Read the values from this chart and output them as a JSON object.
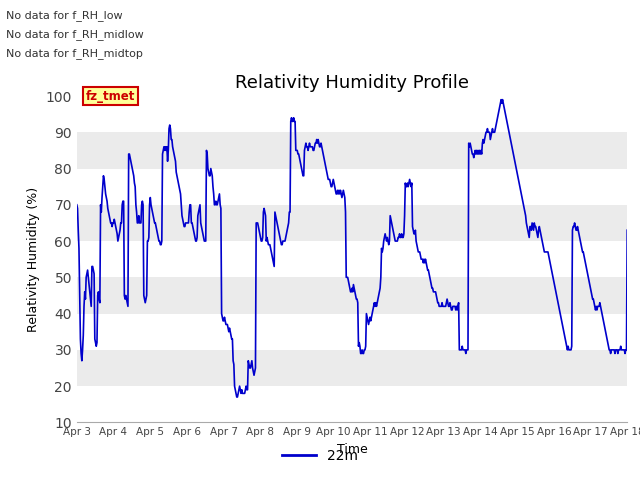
{
  "title": "Relativity Humidity Profile",
  "ylabel": "Relativity Humidity (%)",
  "xlabel": "Time",
  "ylim": [
    10,
    100
  ],
  "line_color": "#0000cc",
  "line_width": 1.2,
  "legend_label": "22m",
  "no_data_texts": [
    "No data for f_RH_low",
    "No data for f_RH_midlow",
    "No data for f_RH_midtop"
  ],
  "annotation_text": "fz_tmet",
  "annotation_color": "#cc0000",
  "annotation_bg": "#ffff99",
  "fig_bg_color": "#ffffff",
  "band_colors": [
    "#ffffff",
    "#ebebeb"
  ],
  "yticks": [
    10,
    20,
    30,
    40,
    50,
    60,
    70,
    80,
    90,
    100
  ],
  "rh_values": [
    70,
    69,
    63,
    58,
    45,
    33,
    29,
    27,
    30,
    34,
    42,
    46,
    44,
    50,
    51,
    52,
    50,
    48,
    46,
    44,
    42,
    53,
    53,
    52,
    51,
    33,
    32,
    31,
    32,
    45,
    46,
    44,
    43,
    70,
    68,
    72,
    75,
    78,
    77,
    75,
    73,
    72,
    71,
    69,
    68,
    67,
    66,
    65,
    65,
    64,
    65,
    65,
    66,
    65,
    64,
    63,
    62,
    60,
    61,
    62,
    63,
    65,
    65,
    70,
    71,
    71,
    45,
    44,
    45,
    44,
    43,
    42,
    84,
    84,
    83,
    82,
    81,
    80,
    79,
    78,
    76,
    75,
    70,
    68,
    65,
    65,
    67,
    65,
    65,
    65,
    70,
    71,
    70,
    45,
    44,
    43,
    44,
    45,
    60,
    60,
    61,
    70,
    72,
    70,
    69,
    68,
    67,
    66,
    65,
    65,
    64,
    63,
    62,
    61,
    60,
    60,
    59,
    59,
    60,
    84,
    85,
    86,
    85,
    86,
    85,
    86,
    82,
    85,
    91,
    92,
    91,
    88,
    88,
    86,
    85,
    84,
    83,
    82,
    79,
    78,
    77,
    76,
    75,
    74,
    73,
    70,
    67,
    66,
    65,
    64,
    64,
    65,
    65,
    65,
    65,
    65,
    68,
    70,
    70,
    65,
    65,
    64,
    63,
    62,
    61,
    60,
    60,
    61,
    67,
    68,
    69,
    70,
    65,
    64,
    63,
    62,
    61,
    60,
    60,
    60,
    85,
    84,
    80,
    79,
    78,
    78,
    80,
    79,
    78,
    75,
    73,
    70,
    70,
    71,
    70,
    70,
    71,
    72,
    73,
    70,
    69,
    40,
    39,
    38,
    38,
    39,
    38,
    37,
    37,
    37,
    36,
    35,
    36,
    35,
    34,
    33,
    33,
    27,
    26,
    20,
    19,
    18,
    17,
    17,
    18,
    19,
    20,
    19,
    18,
    19,
    18,
    18,
    18,
    18,
    19,
    20,
    19,
    19,
    27,
    26,
    25,
    25,
    26,
    27,
    25,
    24,
    23,
    24,
    25,
    65,
    65,
    65,
    64,
    63,
    62,
    61,
    60,
    60,
    61,
    68,
    69,
    68,
    67,
    60,
    61,
    60,
    59,
    59,
    59,
    58,
    57,
    56,
    55,
    54,
    53,
    68,
    67,
    66,
    65,
    64,
    63,
    62,
    61,
    60,
    59,
    59,
    60,
    60,
    60,
    60,
    61,
    62,
    63,
    64,
    65,
    68,
    68,
    93,
    94,
    93,
    93,
    94,
    93,
    93,
    85,
    85,
    85,
    84,
    84,
    83,
    82,
    81,
    80,
    79,
    78,
    78,
    85,
    86,
    87,
    86,
    86,
    85,
    86,
    87,
    86,
    86,
    86,
    86,
    85,
    85,
    86,
    87,
    87,
    88,
    87,
    88,
    87,
    86,
    86,
    87,
    86,
    85,
    84,
    83,
    82,
    81,
    80,
    79,
    78,
    77,
    77,
    77,
    76,
    75,
    75,
    76,
    77,
    76,
    75,
    74,
    73,
    73,
    74,
    73,
    74,
    73,
    74,
    73,
    72,
    73,
    74,
    73,
    72,
    68,
    50,
    50,
    50,
    49,
    48,
    47,
    46,
    46,
    47,
    46,
    48,
    47,
    46,
    45,
    44,
    44,
    43,
    31,
    32,
    31,
    29,
    29,
    30,
    29,
    29,
    30,
    30,
    31,
    40,
    39,
    38,
    37,
    38,
    39,
    38,
    39,
    40,
    41,
    42,
    43,
    42,
    43,
    42,
    43,
    44,
    45,
    46,
    47,
    50,
    58,
    57,
    58,
    60,
    61,
    62,
    61,
    60,
    61,
    60,
    59,
    60,
    67,
    66,
    65,
    64,
    63,
    62,
    61,
    60,
    60,
    60,
    60,
    61,
    61,
    62,
    61,
    61,
    62,
    61,
    61,
    62,
    67,
    76,
    75,
    75,
    76,
    75,
    76,
    77,
    76,
    75,
    76,
    64,
    63,
    62,
    62,
    63,
    60,
    59,
    58,
    57,
    57,
    57,
    56,
    55,
    55,
    55,
    54,
    55,
    54,
    55,
    54,
    53,
    52,
    52,
    51,
    50,
    49,
    48,
    47,
    47,
    46,
    46,
    46,
    46,
    45,
    44,
    43,
    43,
    42,
    42,
    42,
    42,
    43,
    42,
    42,
    42,
    42,
    42,
    43,
    44,
    43,
    42,
    42,
    43,
    42,
    41,
    41,
    42,
    42,
    42,
    42,
    41,
    42,
    41,
    42,
    43,
    30,
    30,
    30,
    30,
    31,
    30,
    30,
    30,
    30,
    29,
    30,
    30,
    30,
    87,
    86,
    87,
    86,
    85,
    84,
    84,
    83,
    84,
    85,
    84,
    85,
    84,
    85,
    84,
    85,
    84,
    85,
    84,
    87,
    88,
    87,
    88,
    89,
    90,
    90,
    91,
    90,
    90,
    90,
    88,
    89,
    90,
    91,
    90,
    90,
    90,
    91,
    92,
    93,
    94,
    95,
    96,
    97,
    98,
    99,
    98,
    99,
    98,
    97,
    96,
    95,
    94,
    93,
    92,
    91,
    90,
    89,
    88,
    87,
    86,
    85,
    84,
    83,
    82,
    81,
    80,
    79,
    78,
    77,
    76,
    75,
    74,
    73,
    72,
    71,
    70,
    69,
    68,
    67,
    65,
    64,
    63,
    62,
    61,
    64,
    64,
    63,
    65,
    64,
    63,
    65,
    64,
    64,
    63,
    62,
    61,
    63,
    64,
    63,
    62,
    61,
    60,
    59,
    58,
    57,
    57,
    57,
    57,
    57,
    57,
    56,
    55,
    54,
    53,
    52,
    51,
    50,
    49,
    48,
    47,
    46,
    45,
    44,
    43,
    42,
    41,
    40,
    39,
    38,
    37,
    36,
    35,
    34,
    33,
    32,
    31,
    30,
    31,
    30,
    30,
    30,
    30,
    31,
    63,
    64,
    64,
    65,
    64,
    63,
    63,
    64,
    63,
    62,
    61,
    60,
    59,
    58,
    57,
    57,
    56,
    55,
    54,
    53,
    52,
    51,
    50,
    49,
    48,
    47,
    46,
    45,
    44,
    44,
    43,
    42,
    41,
    42,
    41,
    42,
    42,
    42,
    43,
    42,
    41,
    40,
    39,
    38,
    37,
    36,
    35,
    34,
    33,
    32,
    31,
    30,
    30,
    29,
    30,
    30,
    30,
    30,
    30,
    29,
    30,
    30,
    30,
    29,
    30,
    30,
    30,
    31,
    30,
    30,
    30,
    30,
    30,
    29,
    30,
    30,
    63
  ]
}
